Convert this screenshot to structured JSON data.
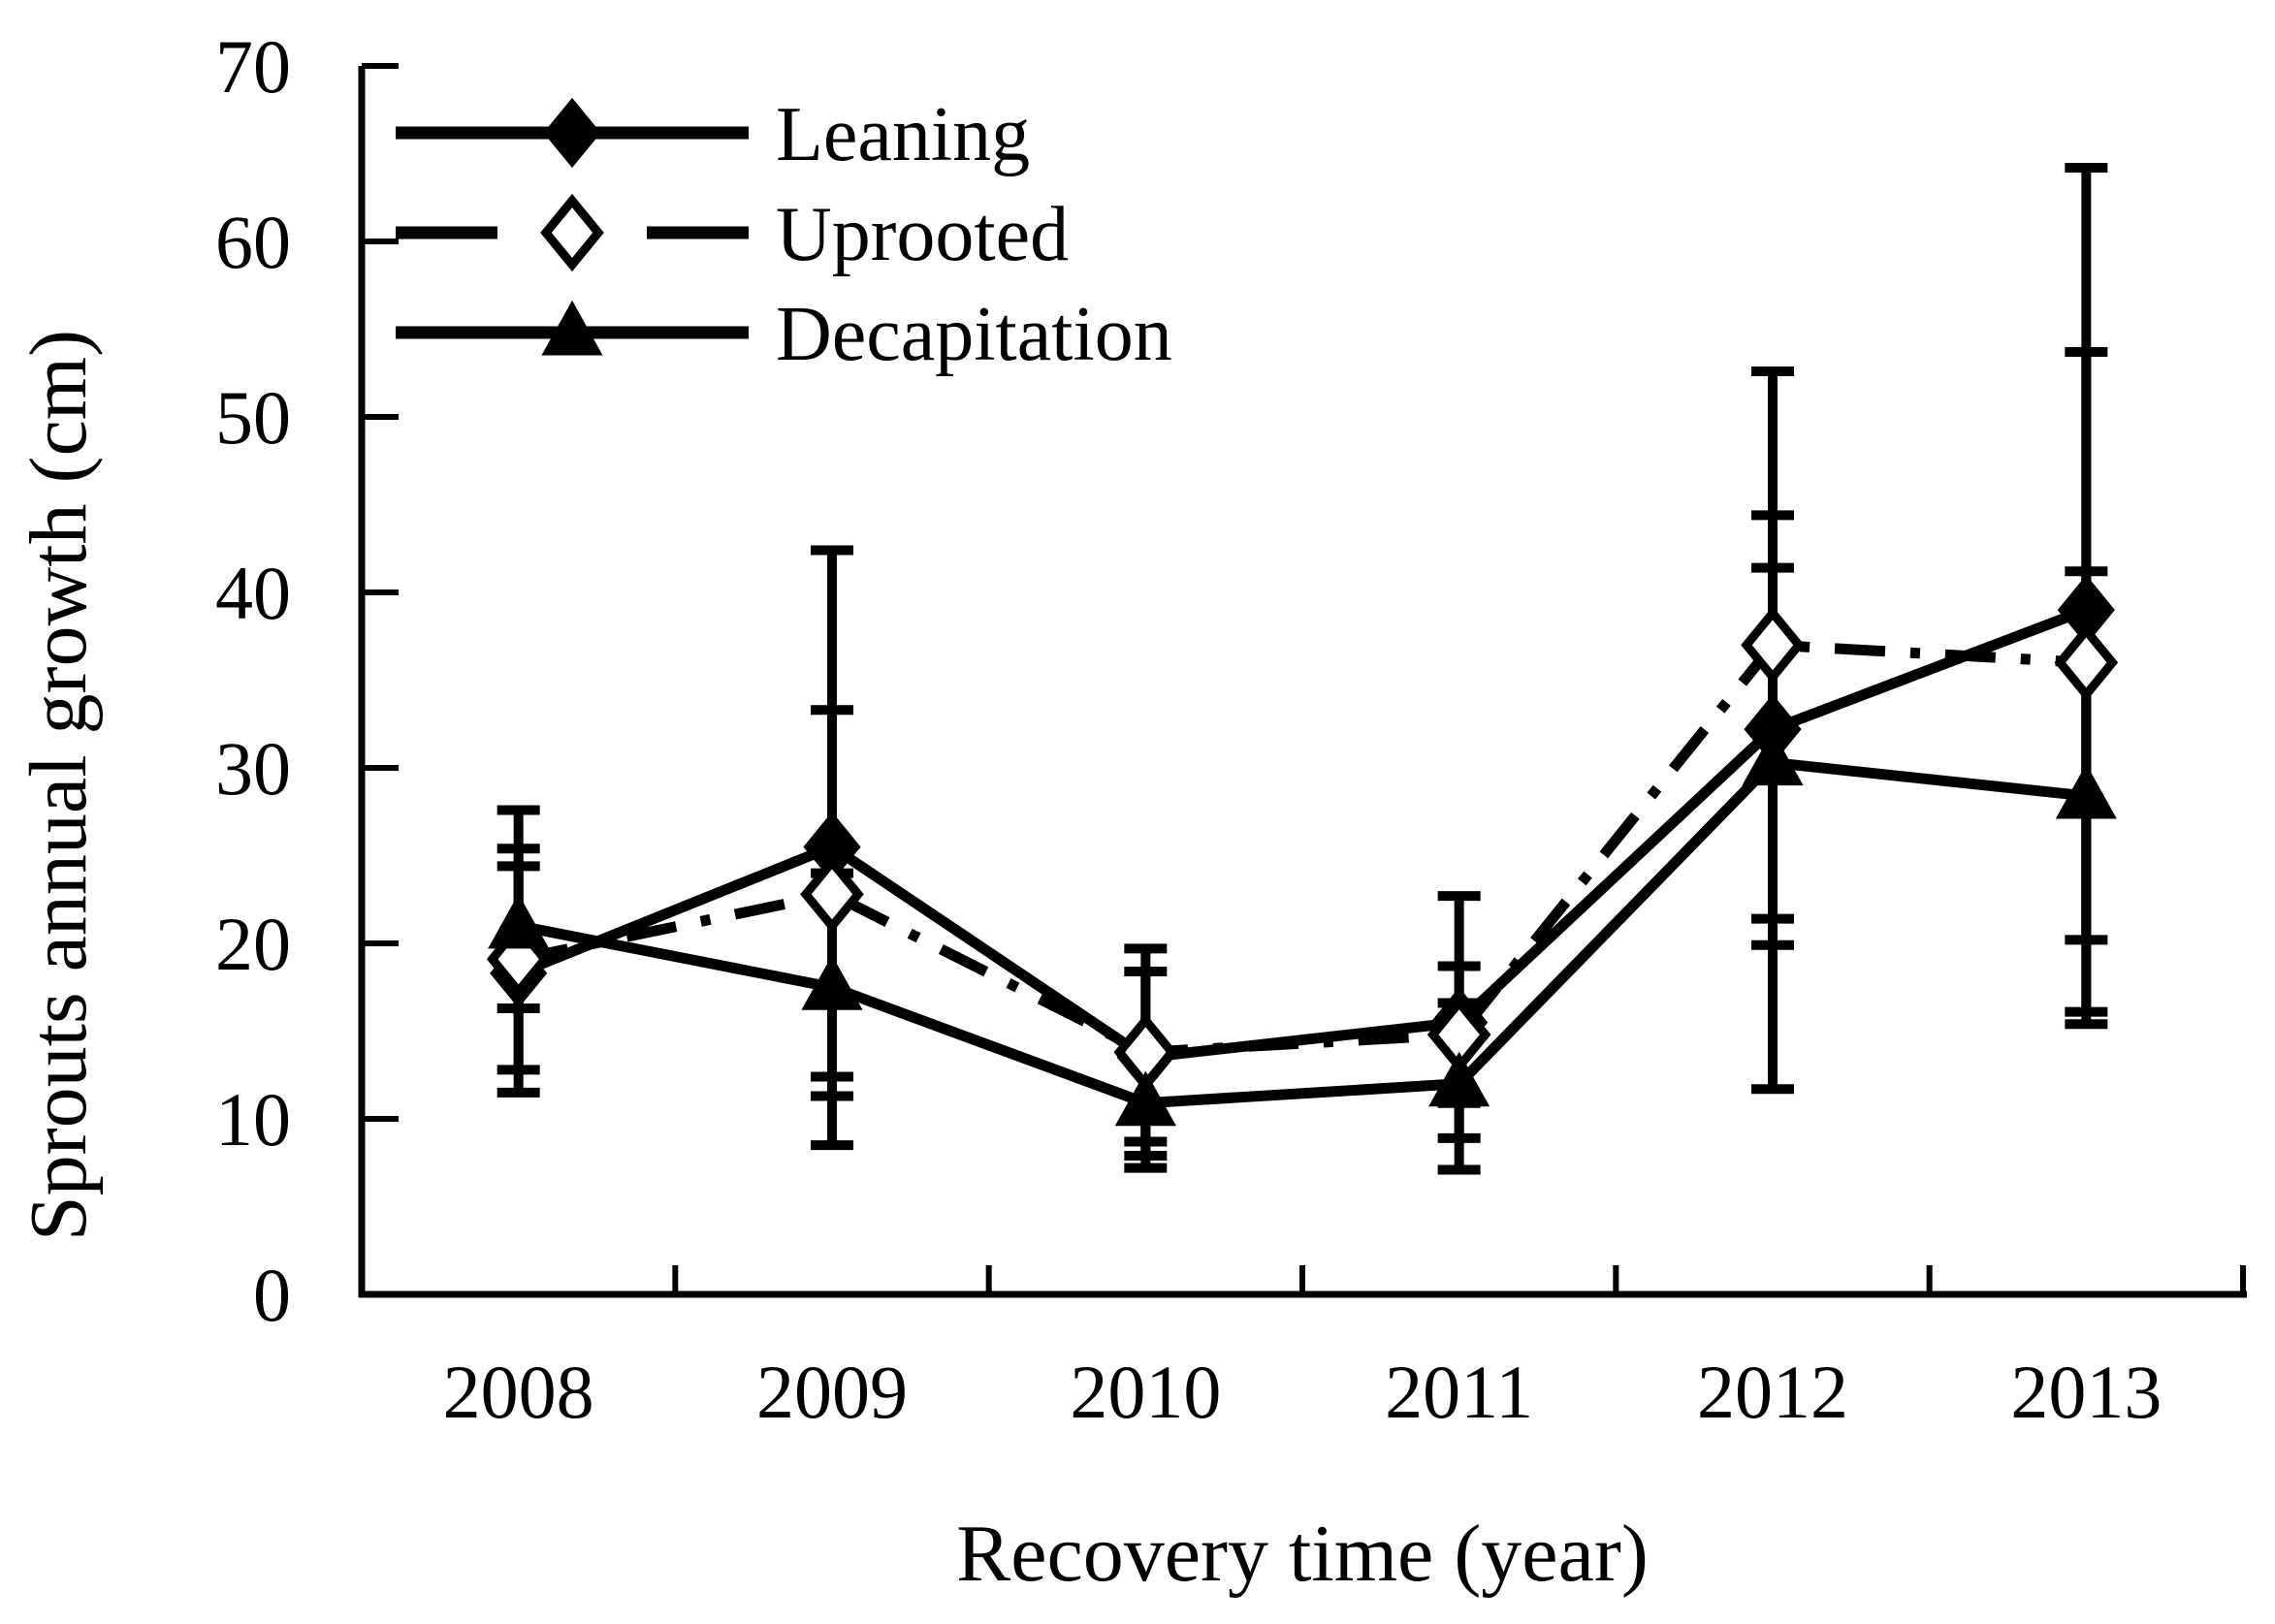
{
  "figure": {
    "background": "#ffffff",
    "ink_color": "#000000"
  },
  "chart_data": {
    "type": "line",
    "title": "",
    "xlabel": "Recovery time (year)",
    "ylabel": "Sprouts annual growth (cm)",
    "categories": [
      "2008",
      "2009",
      "2010",
      "2011",
      "2012",
      "2013"
    ],
    "y_ticks": [
      0,
      10,
      20,
      30,
      40,
      50,
      60,
      70
    ],
    "ylim": [
      0,
      70
    ],
    "grid": false,
    "error_bars": true,
    "legend_position": "upper-left-inside",
    "series": [
      {
        "name": "Leaning",
        "marker": "filled-diamond",
        "line_style": "solid",
        "values": [
          18.3,
          25.5,
          13.5,
          15.5,
          32.2,
          39.0
        ],
        "err_low": [
          11.5,
          8.5,
          7.2,
          8.9,
          19.9,
          16.1
        ],
        "err_high": [
          24.4,
          42.4,
          19.7,
          22.7,
          44.4,
          64.2
        ]
      },
      {
        "name": "Uprooted",
        "marker": "open-diamond",
        "line_style": "dash-dot",
        "values": [
          19.1,
          22.8,
          13.8,
          14.8,
          37.0,
          36.0
        ],
        "err_low": [
          12.8,
          12.4,
          8.7,
          10.9,
          21.4,
          20.2
        ],
        "err_high": [
          25.4,
          33.3,
          18.4,
          18.7,
          52.6,
          53.7
        ]
      },
      {
        "name": "Decapitation",
        "marker": "filled-triangle",
        "line_style": "solid",
        "values": [
          21.0,
          17.5,
          10.9,
          12.0,
          30.3,
          28.4
        ],
        "err_low": [
          16.3,
          11.3,
          7.9,
          7.1,
          11.7,
          15.4
        ],
        "err_high": [
          27.6,
          24.0,
          14.0,
          16.6,
          41.4,
          41.2
        ]
      }
    ]
  }
}
